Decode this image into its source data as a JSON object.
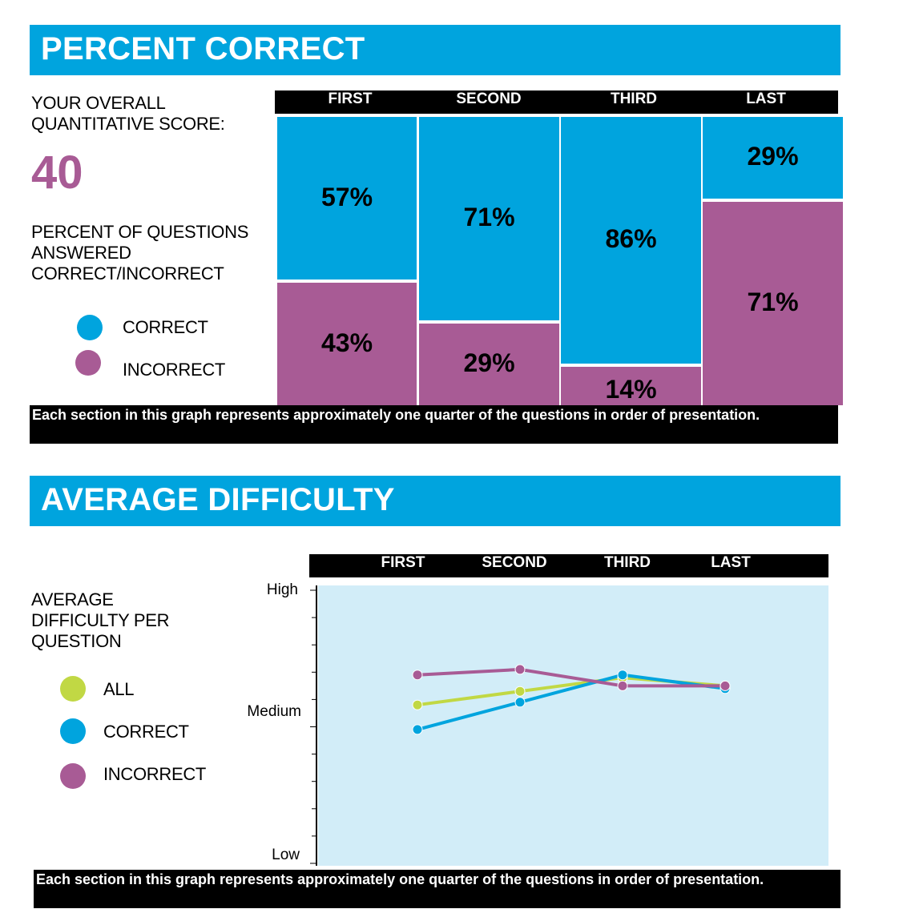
{
  "section1": {
    "title": "PERCENT CORRECT",
    "score_label": "YOUR OVERALL QUANTITATIVE SCORE:",
    "score_label_lines": [
      "YOUR OVERALL",
      "QUANTITATIVE SCORE:"
    ],
    "score_value": "40",
    "description_lines": [
      "PERCENT OF QUESTIONS",
      "ANSWERED",
      "CORRECT/INCORRECT"
    ],
    "legend": [
      {
        "label": "CORRECT",
        "color": "#00a4de"
      },
      {
        "label": "INCORRECT",
        "color": "#a85b95"
      }
    ],
    "note": "Each section in this graph represents approximately one quarter of the questions in order of presentation."
  },
  "section2": {
    "title": "AVERAGE DIFFICULTY",
    "description_lines": [
      "AVERAGE",
      "DIFFICULTY PER",
      "QUESTION"
    ],
    "legend": [
      {
        "label": "ALL",
        "color": "#c1d844"
      },
      {
        "label": "CORRECT",
        "color": "#00a4de"
      },
      {
        "label": "INCORRECT",
        "color": "#a85b95"
      }
    ],
    "note": "Each section in this graph represents approximately one quarter of the questions in order of presentation."
  },
  "chart_data": [
    {
      "type": "bar",
      "stacked": true,
      "categories": [
        "FIRST",
        "SECOND",
        "THIRD",
        "LAST"
      ],
      "series": [
        {
          "name": "CORRECT",
          "values": [
            57,
            71,
            86,
            29
          ],
          "labels": [
            "57%",
            "71%",
            "86%",
            "29%"
          ],
          "color": "#00a4de"
        },
        {
          "name": "INCORRECT",
          "values": [
            43,
            29,
            14,
            71
          ],
          "labels": [
            "43%",
            "29%",
            "14%",
            "71%"
          ],
          "color": "#a85b95"
        }
      ],
      "ylim": [
        0,
        100
      ]
    },
    {
      "type": "line",
      "categories": [
        "FIRST",
        "SECOND",
        "THIRD",
        "LAST"
      ],
      "y_tick_labels": [
        "Low",
        "Medium",
        "High"
      ],
      "ylim": [
        0,
        10
      ],
      "background": "#d2edf8",
      "series": [
        {
          "name": "ALL",
          "values": [
            5.8,
            6.3,
            6.8,
            6.5
          ],
          "color": "#c1d844"
        },
        {
          "name": "CORRECT",
          "values": [
            4.9,
            5.9,
            6.9,
            6.4
          ],
          "color": "#00a4de"
        },
        {
          "name": "INCORRECT",
          "values": [
            6.9,
            7.1,
            6.5,
            6.5
          ],
          "color": "#a85b95"
        }
      ]
    }
  ]
}
